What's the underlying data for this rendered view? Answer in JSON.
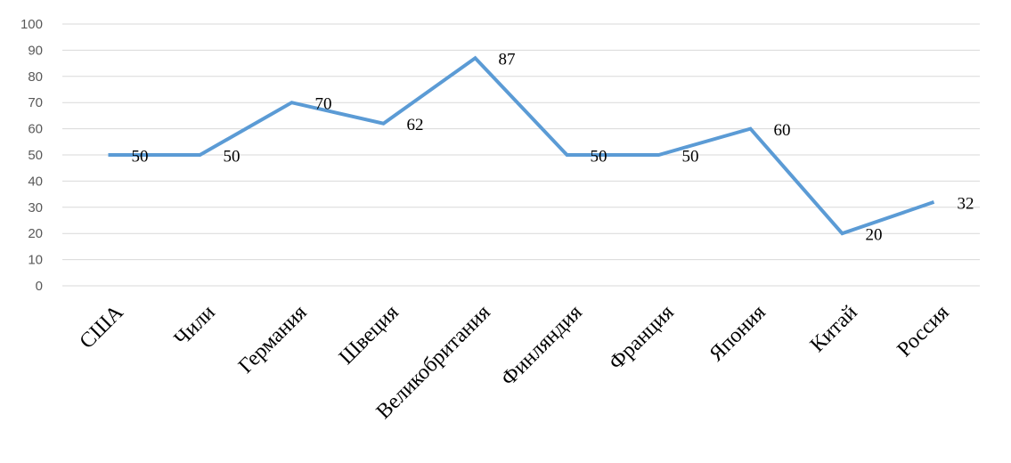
{
  "chart_data": {
    "type": "line",
    "title": "",
    "xlabel": "",
    "ylabel": "",
    "categories": [
      "США",
      "Чили",
      "Германия",
      "Швеция",
      "Великобритания",
      "Финляндия",
      "Франция",
      "Япония",
      "Китай",
      "Россия"
    ],
    "series": [
      {
        "values": [
          50,
          50,
          70,
          62,
          87,
          50,
          50,
          60,
          20,
          32
        ],
        "color": "#5b9bd5"
      }
    ],
    "ylim": [
      0,
      100
    ],
    "yticks": [
      0,
      10,
      20,
      30,
      40,
      50,
      60,
      70,
      80,
      90,
      100
    ],
    "grid": true,
    "legend": "none",
    "data_labels": true
  }
}
